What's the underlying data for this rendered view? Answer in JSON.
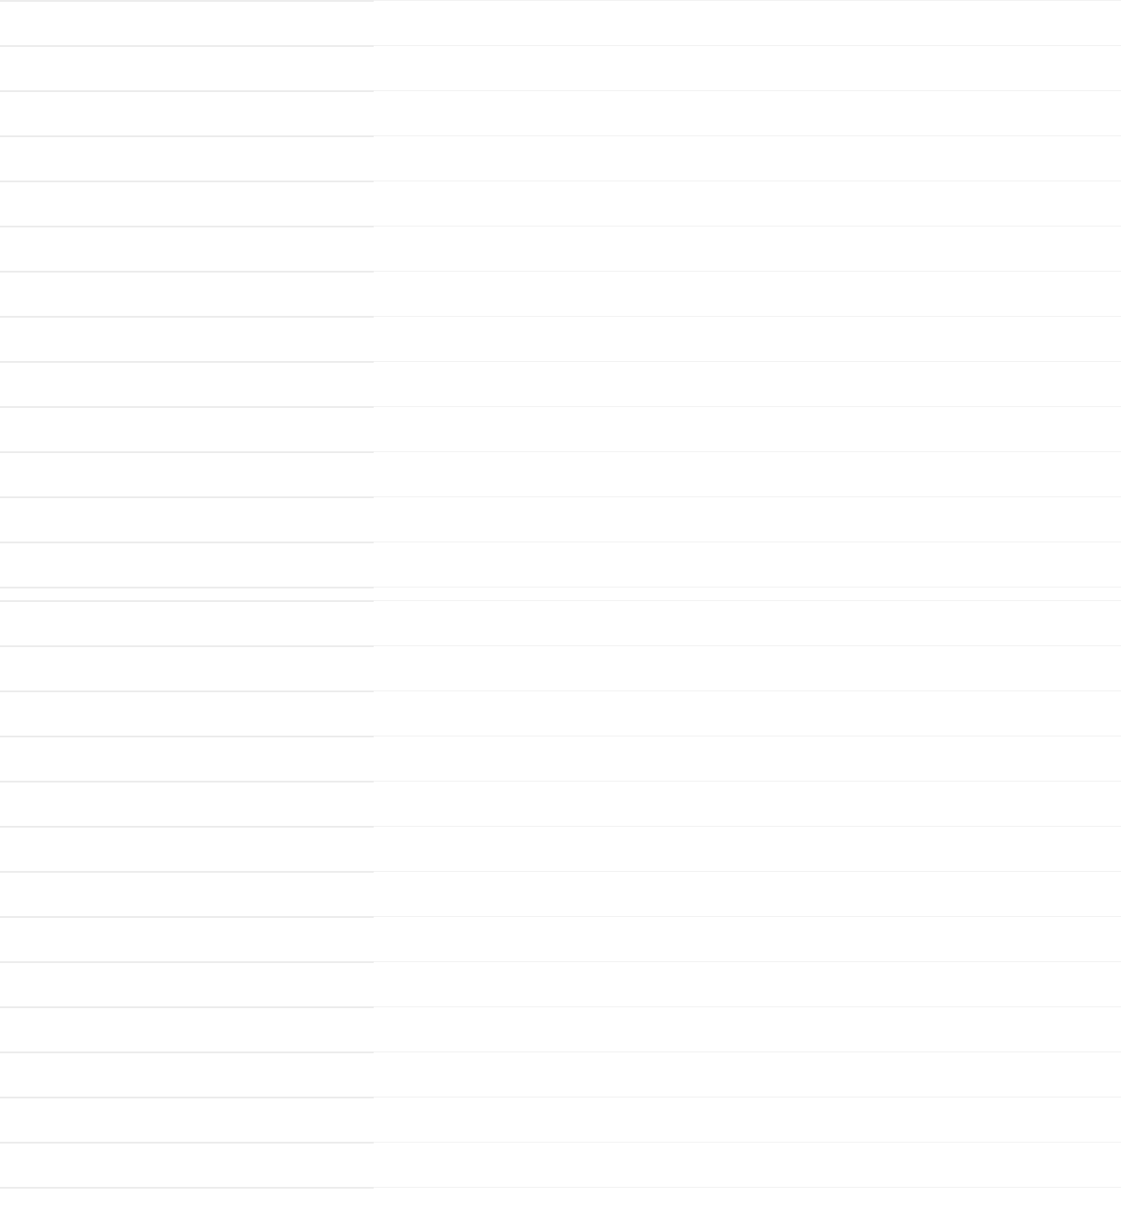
{
  "colors": {
    "background": "#ffffff",
    "left_column_divider": "#ececec",
    "right_column_divider": "#f2f2f2"
  }
}
